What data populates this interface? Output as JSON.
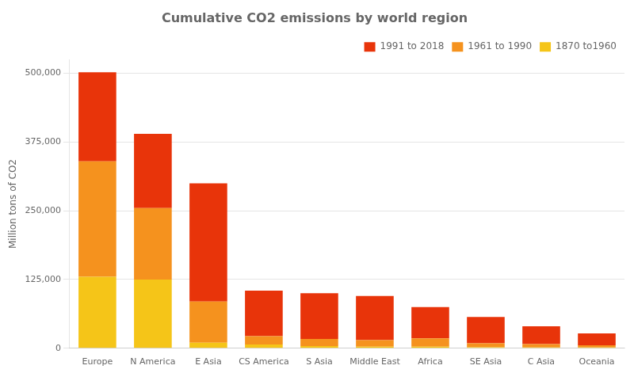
{
  "chart_data": {
    "type": "bar",
    "title": "Cumulative CO2 emissions by world region",
    "ylabel": "Million tons of CO2",
    "categories": [
      "Europe",
      "N America",
      "E Asia",
      "CS America",
      "S Asia",
      "Middle East",
      "Africa",
      "SE Asia",
      "C Asia",
      "Oceania"
    ],
    "series": [
      {
        "name": "1870 to1960",
        "color": "#F5C518",
        "values": [
          130000,
          125000,
          10000,
          7000,
          4000,
          3000,
          3000,
          2000,
          1500,
          1500
        ]
      },
      {
        "name": "1961 to 1990",
        "color": "#F5921E",
        "values": [
          210000,
          130000,
          75000,
          15000,
          13000,
          12000,
          15000,
          7000,
          6000,
          4000
        ]
      },
      {
        "name": "1991 to 2018",
        "color": "#E8340A",
        "values": [
          162000,
          135000,
          215000,
          83000,
          83000,
          80000,
          57000,
          48000,
          32500,
          21500
        ]
      }
    ],
    "stacked": true,
    "ylim": [
      0,
      525000
    ],
    "yticks": [
      0,
      {
        "value": 125000,
        "label": "125,000"
      },
      {
        "value": 250000,
        "label": "250,000"
      },
      {
        "value": 375000,
        "label": "375,000"
      },
      {
        "value": 500000,
        "label": "500,000"
      }
    ],
    "grid": true,
    "legend": "upper right"
  }
}
